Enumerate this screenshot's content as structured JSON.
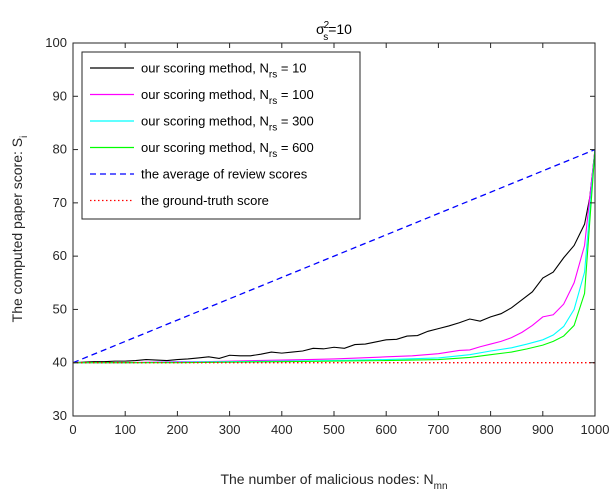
{
  "chart_data": {
    "type": "line",
    "title": {
      "main": "σ",
      "sup": "2",
      "sub": "s",
      "tail": "=10"
    },
    "xlabel": {
      "main": "The number of malicious nodes: N",
      "sub": "mn"
    },
    "ylabel": {
      "main": "The computed paper score: S",
      "sub": "i"
    },
    "xlim": [
      0,
      1000
    ],
    "ylim": [
      30,
      100
    ],
    "xticks": [
      "0",
      "100",
      "200",
      "300",
      "400",
      "500",
      "600",
      "700",
      "800",
      "900",
      "1000"
    ],
    "yticks": [
      "30",
      "40",
      "50",
      "60",
      "70",
      "80",
      "90",
      "100"
    ],
    "grid": false,
    "legend_position": "top-left",
    "series": [
      {
        "label": {
          "main": "our scoring method, N",
          "sub": "rs",
          "tail": " = 10"
        },
        "color": "#000000",
        "dash": "solid",
        "points": [
          [
            0,
            40
          ],
          [
            20,
            40.1
          ],
          [
            40,
            40.2
          ],
          [
            60,
            40.2
          ],
          [
            80,
            40.3
          ],
          [
            100,
            40.3
          ],
          [
            120,
            40.4
          ],
          [
            140,
            40.6
          ],
          [
            160,
            40.5
          ],
          [
            180,
            40.4
          ],
          [
            200,
            40.6
          ],
          [
            220,
            40.7
          ],
          [
            240,
            40.9
          ],
          [
            260,
            41.1
          ],
          [
            280,
            40.8
          ],
          [
            300,
            41.4
          ],
          [
            320,
            41.3
          ],
          [
            340,
            41.3
          ],
          [
            360,
            41.6
          ],
          [
            380,
            42
          ],
          [
            400,
            41.8
          ],
          [
            420,
            42
          ],
          [
            440,
            42.2
          ],
          [
            460,
            42.7
          ],
          [
            480,
            42.6
          ],
          [
            500,
            42.9
          ],
          [
            520,
            42.7
          ],
          [
            540,
            43.4
          ],
          [
            560,
            43.5
          ],
          [
            580,
            43.9
          ],
          [
            600,
            44.3
          ],
          [
            620,
            44.4
          ],
          [
            640,
            45
          ],
          [
            660,
            45.1
          ],
          [
            680,
            45.9
          ],
          [
            700,
            46.4
          ],
          [
            720,
            46.9
          ],
          [
            740,
            47.5
          ],
          [
            760,
            48.2
          ],
          [
            780,
            47.8
          ],
          [
            800,
            48.6
          ],
          [
            820,
            49.2
          ],
          [
            840,
            50.3
          ],
          [
            860,
            51.8
          ],
          [
            880,
            53.3
          ],
          [
            900,
            55.9
          ],
          [
            920,
            57
          ],
          [
            940,
            59.7
          ],
          [
            960,
            62
          ],
          [
            980,
            66
          ],
          [
            990,
            71
          ],
          [
            1000,
            80
          ]
        ]
      },
      {
        "label": {
          "main": "our scoring method, N",
          "sub": "rs",
          "tail": " = 100"
        },
        "color": "#ff00ff",
        "dash": "solid",
        "points": [
          [
            0,
            40
          ],
          [
            50,
            40
          ],
          [
            100,
            40
          ],
          [
            150,
            40.1
          ],
          [
            200,
            40.2
          ],
          [
            250,
            40.2
          ],
          [
            300,
            40.3
          ],
          [
            350,
            40.4
          ],
          [
            400,
            40.5
          ],
          [
            450,
            40.6
          ],
          [
            500,
            40.7
          ],
          [
            550,
            40.9
          ],
          [
            600,
            41.1
          ],
          [
            650,
            41.3
          ],
          [
            700,
            41.7
          ],
          [
            740,
            42.3
          ],
          [
            760,
            42.4
          ],
          [
            780,
            43
          ],
          [
            800,
            43.5
          ],
          [
            820,
            44
          ],
          [
            840,
            44.7
          ],
          [
            860,
            45.7
          ],
          [
            880,
            47
          ],
          [
            900,
            48.6
          ],
          [
            920,
            49
          ],
          [
            940,
            51
          ],
          [
            960,
            55
          ],
          [
            980,
            62
          ],
          [
            1000,
            80
          ]
        ]
      },
      {
        "label": {
          "main": "our scoring method, N",
          "sub": "rs",
          "tail": " = 300"
        },
        "color": "#00ffff",
        "dash": "solid",
        "points": [
          [
            0,
            40
          ],
          [
            100,
            40
          ],
          [
            200,
            40.1
          ],
          [
            300,
            40.2
          ],
          [
            400,
            40.3
          ],
          [
            500,
            40.4
          ],
          [
            600,
            40.6
          ],
          [
            700,
            40.9
          ],
          [
            760,
            41.5
          ],
          [
            800,
            42.2
          ],
          [
            840,
            42.8
          ],
          [
            870,
            43.5
          ],
          [
            900,
            44.3
          ],
          [
            920,
            45.2
          ],
          [
            940,
            46.8
          ],
          [
            960,
            50
          ],
          [
            980,
            57
          ],
          [
            1000,
            80
          ]
        ]
      },
      {
        "label": {
          "main": "our scoring method, N",
          "sub": "rs",
          "tail": " = 600"
        },
        "color": "#00ff00",
        "dash": "solid",
        "points": [
          [
            0,
            40
          ],
          [
            100,
            40
          ],
          [
            200,
            40
          ],
          [
            300,
            40.1
          ],
          [
            400,
            40.2
          ],
          [
            500,
            40.3
          ],
          [
            600,
            40.4
          ],
          [
            700,
            40.6
          ],
          [
            760,
            41
          ],
          [
            800,
            41.5
          ],
          [
            840,
            42
          ],
          [
            870,
            42.6
          ],
          [
            900,
            43.3
          ],
          [
            920,
            44
          ],
          [
            940,
            45
          ],
          [
            960,
            47
          ],
          [
            980,
            53
          ],
          [
            1000,
            80
          ]
        ]
      },
      {
        "label": {
          "main": "the average of review scores",
          "sub": "",
          "tail": ""
        },
        "color": "#0000ff",
        "dash": "dashed",
        "points": [
          [
            0,
            40
          ],
          [
            1000,
            80
          ]
        ]
      },
      {
        "label": {
          "main": "the ground-truth score",
          "sub": "",
          "tail": ""
        },
        "color": "#ff0000",
        "dash": "dotted",
        "points": [
          [
            0,
            40
          ],
          [
            1000,
            40
          ]
        ]
      }
    ]
  }
}
